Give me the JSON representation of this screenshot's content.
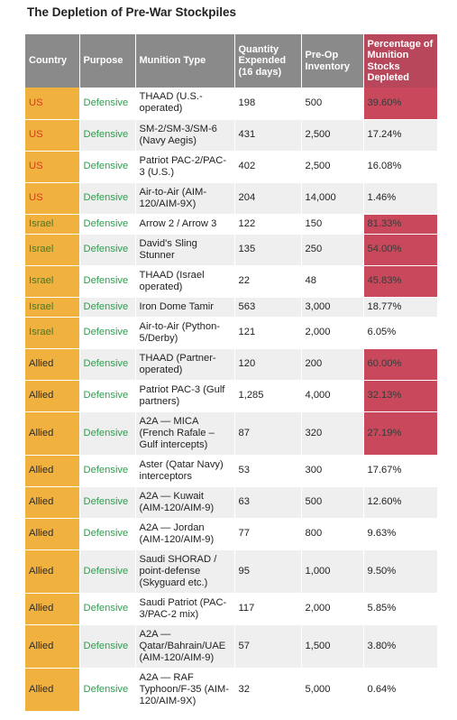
{
  "title": "The Depletion of Pre-War Stockpiles",
  "table": {
    "headers": [
      "Country",
      "Purpose",
      "Munition Type",
      "Quantity Expended (16 days)",
      "Pre-Op Inventory",
      "Percentage of Munition Stocks Depleted"
    ],
    "rows": [
      {
        "country": "US",
        "purpose": "Defensive",
        "munition": "THAAD (U.S.-operated)",
        "qty": "198",
        "inventory": "500",
        "pct": "39.60%",
        "highlight": true,
        "h": 35
      },
      {
        "country": "US",
        "purpose": "Defensive",
        "munition": "SM-2/SM-3/SM-6 (Navy Aegis)",
        "qty": "431",
        "inventory": "2,500",
        "pct": "17.24%",
        "highlight": false,
        "h": 35
      },
      {
        "country": "US",
        "purpose": "Defensive",
        "munition": "Patriot PAC-2/PAC-3 (U.S.)",
        "qty": "402",
        "inventory": "2,500",
        "pct": "16.08%",
        "highlight": false,
        "h": 35
      },
      {
        "country": "US",
        "purpose": "Defensive",
        "munition": "Air-to-Air (AIM-120/AIM-9X)",
        "qty": "204",
        "inventory": "14,000",
        "pct": "1.46%",
        "highlight": false,
        "h": 35
      },
      {
        "country": "Israel",
        "purpose": "Defensive",
        "munition": "Arrow 2 / Arrow 3",
        "qty": "122",
        "inventory": "150",
        "pct": "81.33%",
        "highlight": true,
        "h": 22
      },
      {
        "country": "Israel",
        "purpose": "Defensive",
        "munition": "David's Sling Stunner",
        "qty": "135",
        "inventory": "250",
        "pct": "54.00%",
        "highlight": true,
        "h": 35
      },
      {
        "country": "Israel",
        "purpose": "Defensive",
        "munition": "THAAD (Israel operated)",
        "qty": "22",
        "inventory": "48",
        "pct": "45.83%",
        "highlight": true,
        "h": 35
      },
      {
        "country": "Israel",
        "purpose": "Defensive",
        "munition": "Iron Dome Tamir",
        "qty": "563",
        "inventory": "3,000",
        "pct": "18.77%",
        "highlight": false,
        "h": 22
      },
      {
        "country": "Israel",
        "purpose": "Defensive",
        "munition": "Air-to-Air (Python-5/Derby)",
        "qty": "121",
        "inventory": "2,000",
        "pct": "6.05%",
        "highlight": false,
        "h": 35
      },
      {
        "country": "Allied",
        "purpose": "Defensive",
        "munition": "THAAD (Partner-operated)",
        "qty": "120",
        "inventory": "200",
        "pct": "60.00%",
        "highlight": true,
        "h": 35
      },
      {
        "country": "Allied",
        "purpose": "Defensive",
        "munition": "Patriot PAC-3 (Gulf partners)",
        "qty": "1,285",
        "inventory": "4,000",
        "pct": "32.13%",
        "highlight": true,
        "h": 35
      },
      {
        "country": "Allied",
        "purpose": "Defensive",
        "munition": "A2A — MICA (French Rafale – Gulf intercepts)",
        "qty": "87",
        "inventory": "320",
        "pct": "27.19%",
        "highlight": true,
        "h": 48
      },
      {
        "country": "Allied",
        "purpose": "Defensive",
        "munition": "Aster (Qatar Navy) interceptors",
        "qty": "53",
        "inventory": "300",
        "pct": "17.67%",
        "highlight": false,
        "h": 35
      },
      {
        "country": "Allied",
        "purpose": "Defensive",
        "munition": "A2A — Kuwait (AIM-120/AIM-9)",
        "qty": "63",
        "inventory": "500",
        "pct": "12.60%",
        "highlight": false,
        "h": 35
      },
      {
        "country": "Allied",
        "purpose": "Defensive",
        "munition": "A2A — Jordan (AIM-120/AIM-9)",
        "qty": "77",
        "inventory": "800",
        "pct": "9.63%",
        "highlight": false,
        "h": 35
      },
      {
        "country": "Allied",
        "purpose": "Defensive",
        "munition": "Saudi SHORAD / point-defense (Skyguard etc.)",
        "qty": "95",
        "inventory": "1,000",
        "pct": "9.50%",
        "highlight": false,
        "h": 48
      },
      {
        "country": "Allied",
        "purpose": "Defensive",
        "munition": "Saudi Patriot (PAC-3/PAC-2 mix)",
        "qty": "117",
        "inventory": "2,000",
        "pct": "5.85%",
        "highlight": false,
        "h": 35
      },
      {
        "country": "Allied",
        "purpose": "Defensive",
        "munition": "A2A — Qatar/Bahrain/UAE (AIM-120/AIM-9)",
        "qty": "57",
        "inventory": "1,500",
        "pct": "3.80%",
        "highlight": false,
        "h": 48
      },
      {
        "country": "Allied",
        "purpose": "Defensive",
        "munition": "A2A — RAF Typhoon/F-35 (AIM-120/AIM-9X)",
        "qty": "32",
        "inventory": "5,000",
        "pct": "0.64%",
        "highlight": false,
        "h": 48
      }
    ]
  }
}
